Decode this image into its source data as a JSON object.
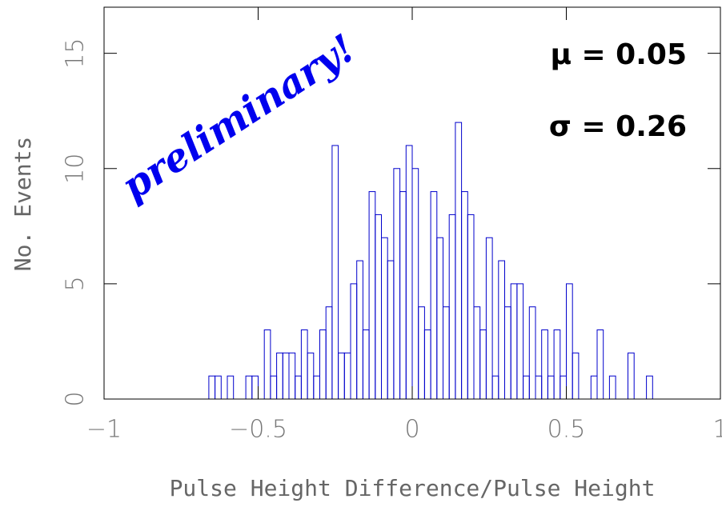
{
  "chart_data": {
    "type": "histogram",
    "xlabel": "Pulse Height Difference/Pulse Height",
    "ylabel": "No. Events",
    "annotations": [
      "preliminary!",
      "μ = 0.05",
      "σ = 0.26"
    ],
    "color": "#0000cc",
    "bins": [
      -1,
      -0.98,
      -0.96,
      -0.94,
      -0.92,
      -0.9,
      -0.88,
      -0.86,
      -0.84,
      -0.82,
      -0.8,
      -0.78,
      -0.76,
      -0.74,
      -0.72,
      -0.7,
      -0.68,
      -0.66,
      -0.64,
      -0.62,
      -0.6,
      -0.58,
      -0.56,
      -0.54,
      -0.52,
      -0.5,
      -0.48,
      -0.46,
      -0.44,
      -0.42,
      -0.4,
      -0.38,
      -0.36,
      -0.34,
      -0.32,
      -0.3,
      -0.28,
      -0.26,
      -0.24,
      -0.22,
      -0.2,
      -0.18,
      -0.16,
      -0.14,
      -0.12,
      -0.1,
      -0.08,
      -0.06,
      -0.04,
      -0.02,
      0,
      0.02,
      0.04,
      0.06,
      0.08,
      0.1,
      0.12,
      0.14,
      0.16,
      0.18,
      0.2,
      0.22,
      0.24,
      0.26,
      0.28,
      0.3,
      0.32,
      0.34,
      0.36,
      0.38,
      0.4,
      0.42,
      0.44,
      0.46,
      0.48,
      0.5,
      0.52,
      0.54,
      0.56,
      0.58,
      0.6,
      0.62,
      0.64,
      0.66,
      0.68,
      0.7,
      0.72,
      0.74,
      0.76,
      0.78,
      0.8,
      0.82,
      0.84,
      0.86,
      0.88,
      0.9,
      0.92,
      0.94,
      0.96,
      0.98,
      1
    ],
    "values": [
      0,
      0,
      0,
      0,
      0,
      0,
      0,
      0,
      0,
      0,
      0,
      0,
      0,
      0,
      0,
      0,
      0,
      1,
      1,
      0,
      1,
      0,
      0,
      1,
      1,
      0,
      3,
      1,
      2,
      2,
      2,
      1,
      3,
      2,
      1,
      3,
      4,
      11,
      2,
      2,
      5,
      6,
      3,
      9,
      8,
      7,
      6,
      10,
      9,
      11,
      10,
      4,
      3,
      9,
      7,
      4,
      8,
      12,
      9,
      8,
      4,
      3,
      7,
      1,
      6,
      4,
      5,
      5,
      1,
      4,
      1,
      3,
      1,
      3,
      1,
      5,
      2,
      0,
      0,
      1,
      3,
      0,
      1,
      0,
      0,
      2,
      0,
      0,
      1,
      0,
      0,
      0,
      0,
      0,
      0,
      0,
      0,
      0,
      0,
      0
    ],
    "xlim": [
      -1,
      1
    ],
    "xticks": [
      {
        "value": -1,
        "label": "−1"
      },
      {
        "value": -0.5,
        "label": "−0.5"
      },
      0,
      0.5,
      1
    ],
    "ylim": [
      0,
      17
    ],
    "yticks": [
      0,
      5,
      10,
      15
    ]
  }
}
